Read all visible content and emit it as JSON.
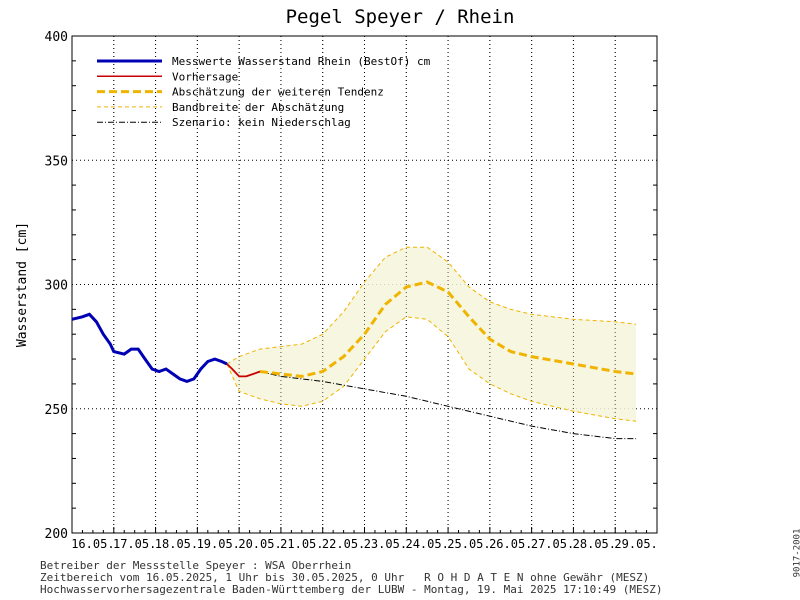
{
  "chart_data": {
    "type": "line",
    "title": "Pegel Speyer / Rhein",
    "ylabel": "Wasserstand [cm]",
    "xlabel": "",
    "ylim": [
      200,
      400
    ],
    "yticks": [
      200,
      250,
      300,
      350,
      400
    ],
    "xlim": [
      "16.05. 00:00",
      "30.05. 00:00"
    ],
    "x_tick_labels": [
      "16.05.",
      "17.05.",
      "18.05.",
      "19.05.",
      "20.05.",
      "21.05.",
      "22.05.",
      "23.05.",
      "24.05.",
      "25.05.",
      "26.05.",
      "27.05.",
      "28.05.",
      "29.05."
    ],
    "grid": true,
    "legend_position": "top-left",
    "colors": {
      "measured": "#0000b4",
      "forecast": "#c80000",
      "tendency": "#f0b400",
      "band": "#f0b400",
      "band_fill": "#f5f5dc",
      "scenario": "#000000"
    },
    "series": [
      {
        "name": "Messwerte Wasserstand Rhein (BestOf)  cm",
        "x": [
          "16.05. 00:00",
          "16.05. 06:00",
          "16.05. 10:00",
          "16.05. 14:00",
          "16.05. 18:00",
          "16.05. 22:00",
          "17.05. 00:00",
          "17.05. 06:00",
          "17.05. 10:00",
          "17.05. 14:00",
          "17.05. 18:00",
          "17.05. 22:00",
          "18.05. 02:00",
          "18.05. 06:00",
          "18.05. 10:00",
          "18.05. 14:00",
          "18.05. 18:00",
          "18.05. 22:00",
          "19.05. 02:00",
          "19.05. 06:00",
          "19.05. 10:00",
          "19.05. 14:00",
          "19.05. 17:00"
        ],
        "y": [
          286,
          287,
          288,
          285,
          280,
          276,
          273,
          272,
          274,
          274,
          270,
          266,
          265,
          266,
          264,
          262,
          261,
          262,
          266,
          269,
          270,
          269,
          268
        ]
      },
      {
        "name": "Vorhersage",
        "x": [
          "19.05. 17:00",
          "19.05. 20:00",
          "20.05. 00:00",
          "20.05. 04:00",
          "20.05. 08:00",
          "20.05. 12:00"
        ],
        "y": [
          268,
          266,
          263,
          263,
          264,
          265
        ]
      },
      {
        "name": "Abschätzung der weiteren Tendenz",
        "x": [
          "20.05. 12:00",
          "21.05. 00:00",
          "21.05. 12:00",
          "22.05. 00:00",
          "22.05. 12:00",
          "23.05. 00:00",
          "23.05. 12:00",
          "24.05. 00:00",
          "24.05. 12:00",
          "25.05. 00:00",
          "25.05. 12:00",
          "26.05. 00:00",
          "26.05. 12:00",
          "27.05. 00:00",
          "28.05. 00:00",
          "29.05. 00:00",
          "29.05. 12:00"
        ],
        "y": [
          265,
          264,
          263,
          265,
          271,
          280,
          292,
          299,
          301,
          297,
          287,
          278,
          273,
          271,
          268,
          265,
          264
        ]
      },
      {
        "name": "Bandbreite der Abschätzung",
        "x": [
          "19.05. 17:00",
          "20.05. 00:00",
          "20.05. 12:00",
          "21.05. 00:00",
          "21.05. 12:00",
          "22.05. 00:00",
          "22.05. 12:00",
          "23.05. 00:00",
          "23.05. 12:00",
          "24.05. 00:00",
          "24.05. 12:00",
          "25.05. 00:00",
          "25.05. 12:00",
          "26.05. 00:00",
          "26.05. 12:00",
          "27.05. 00:00",
          "28.05. 00:00",
          "29.05. 00:00",
          "29.05. 12:00"
        ],
        "upper": [
          268,
          271,
          274,
          275,
          276,
          280,
          289,
          301,
          311,
          315,
          315,
          309,
          299,
          293,
          290,
          288,
          286,
          285,
          284
        ],
        "lower": [
          268,
          257,
          254,
          252,
          251,
          253,
          259,
          270,
          281,
          287,
          286,
          279,
          266,
          260,
          256,
          253,
          249,
          246,
          245
        ]
      },
      {
        "name": "Szenario: kein Niederschlag",
        "x": [
          "20.05. 12:00",
          "21.05. 00:00",
          "22.05. 00:00",
          "23.05. 00:00",
          "24.05. 00:00",
          "25.05. 00:00",
          "26.05. 00:00",
          "27.05. 00:00",
          "28.05. 00:00",
          "29.05. 00:00",
          "29.05. 12:00"
        ],
        "y": [
          265,
          263,
          261,
          258,
          255,
          251,
          247,
          243,
          240,
          238,
          238
        ]
      }
    ]
  },
  "footer": {
    "line1": "Betreiber der Messstelle Speyer : WSA Oberrhein",
    "line2": "Zeitbereich vom 16.05.2025, 1 Uhr bis 30.05.2025, 0 Uhr   R O H D A T E N ohne Gewähr (MESZ)",
    "line3": "Hochwasservorhersagezentrale Baden-Württemberg der LUBW - Montag, 19. Mai 2025 17:10:49 (MESZ)",
    "side_code": "9017-2001"
  }
}
